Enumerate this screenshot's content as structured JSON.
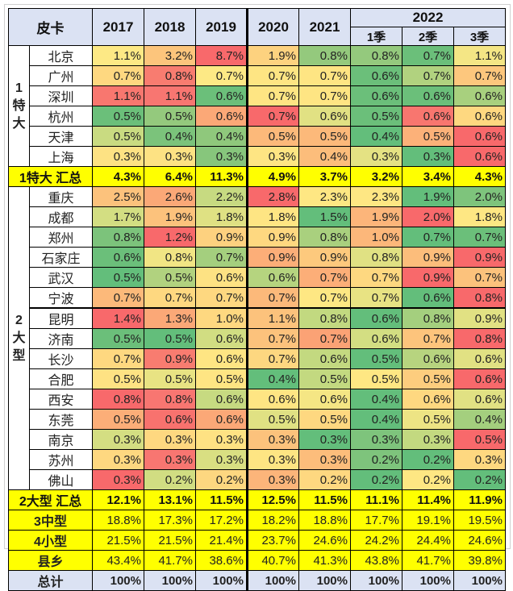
{
  "header": {
    "corner": "皮卡",
    "years": [
      "2017",
      "2018",
      "2019",
      "2020",
      "2021"
    ],
    "year_2022": "2022",
    "quarters": [
      "1季",
      "2季",
      "3季"
    ]
  },
  "groups": [
    {
      "label": "1\n特\n大",
      "rows": [
        {
          "city": "北京",
          "values": [
            "1.1%",
            "3.2%",
            "8.7%",
            "1.9%",
            "0.8%",
            "0.8%",
            "0.7%",
            "1.1%"
          ],
          "colors": [
            "#fde985",
            "#fcc57c",
            "#f8696b",
            "#fdd27f",
            "#94c97d",
            "#94c97d",
            "#6bbf7a",
            "#f4e685"
          ]
        },
        {
          "city": "广州",
          "values": [
            "0.7%",
            "0.8%",
            "0.7%",
            "0.7%",
            "0.7%",
            "0.6%",
            "0.7%",
            "0.7%"
          ],
          "colors": [
            "#fed880",
            "#f87c70",
            "#fde985",
            "#fee583",
            "#fee583",
            "#6bbf7a",
            "#b1d27f",
            "#fdc77d"
          ]
        },
        {
          "city": "深圳",
          "values": [
            "1.1%",
            "1.1%",
            "0.6%",
            "0.7%",
            "0.7%",
            "0.6%",
            "0.6%",
            "0.6%"
          ],
          "colors": [
            "#f8776f",
            "#f87671",
            "#6bbf7a",
            "#fee583",
            "#fee583",
            "#6bbf7a",
            "#6bbf7a",
            "#a8d07e"
          ]
        },
        {
          "city": "杭州",
          "values": [
            "0.5%",
            "0.5%",
            "0.6%",
            "0.7%",
            "0.6%",
            "0.5%",
            "0.6%",
            "0.6%"
          ],
          "colors": [
            "#6bbf7a",
            "#94c97d",
            "#fba877",
            "#f8696b",
            "#e1e183",
            "#6bbf7a",
            "#f8766f",
            "#fed880"
          ]
        },
        {
          "city": "天津",
          "values": [
            "0.5%",
            "0.4%",
            "0.4%",
            "0.5%",
            "0.5%",
            "0.4%",
            "0.5%",
            "0.6%"
          ],
          "colors": [
            "#c9db81",
            "#7bc37b",
            "#8fc87c",
            "#fcb97a",
            "#fcb97a",
            "#63be7b",
            "#fcb179",
            "#f8696b"
          ]
        },
        {
          "city": "上海",
          "values": [
            "0.3%",
            "0.3%",
            "0.3%",
            "0.3%",
            "0.4%",
            "0.3%",
            "0.3%",
            "0.6%"
          ],
          "colors": [
            "#fde283",
            "#fde283",
            "#87c67c",
            "#fee583",
            "#fcbd7b",
            "#e4e283",
            "#63be7b",
            "#f8696b"
          ]
        }
      ]
    },
    {
      "label": "2\n大\n型",
      "rows": [
        {
          "city": "重庆",
          "values": [
            "2.5%",
            "2.6%",
            "2.2%",
            "2.8%",
            "2.3%",
            "2.3%",
            "1.9%",
            "2.0%"
          ],
          "colors": [
            "#fcc27c",
            "#fba877",
            "#c7da81",
            "#f8696b",
            "#fee783",
            "#fee783",
            "#63be7b",
            "#7ec47c"
          ]
        },
        {
          "city": "成都",
          "values": [
            "1.7%",
            "1.9%",
            "1.8%",
            "1.8%",
            "1.5%",
            "1.9%",
            "2.0%",
            "1.8%"
          ],
          "colors": [
            "#d3de82",
            "#fcc27c",
            "#dfe183",
            "#fee583",
            "#63be7b",
            "#fcb57a",
            "#f8696b",
            "#fee783"
          ]
        },
        {
          "city": "郑州",
          "values": [
            "0.8%",
            "1.2%",
            "0.9%",
            "0.9%",
            "0.8%",
            "1.0%",
            "0.7%",
            "0.7%"
          ],
          "colors": [
            "#7cc37b",
            "#f8696b",
            "#fdd17f",
            "#fed880",
            "#a9d07e",
            "#fcb77a",
            "#63be7b",
            "#6bbf7a"
          ]
        },
        {
          "city": "石家庄",
          "values": [
            "0.6%",
            "0.8%",
            "0.7%",
            "0.9%",
            "0.9%",
            "0.8%",
            "0.9%",
            "0.9%"
          ],
          "colors": [
            "#6bbf7a",
            "#f1e584",
            "#a4cf7e",
            "#fcae78",
            "#fdc97d",
            "#e0e183",
            "#fcbd7b",
            "#f8696b"
          ]
        },
        {
          "city": "武汉",
          "values": [
            "0.5%",
            "0.5%",
            "0.6%",
            "0.6%",
            "0.7%",
            "0.7%",
            "0.9%",
            "0.7%"
          ],
          "colors": [
            "#63be7b",
            "#b1d27f",
            "#fde283",
            "#b5d47f",
            "#fcae78",
            "#fed880",
            "#f8696b",
            "#fcc27c"
          ]
        },
        {
          "city": "宁波",
          "values": [
            "0.7%",
            "0.7%",
            "0.7%",
            "0.7%",
            "0.7%",
            "0.7%",
            "0.6%",
            "0.8%"
          ],
          "colors": [
            "#fcb97a",
            "#fed880",
            "#fed880",
            "#fcb97a",
            "#fee783",
            "#e8e383",
            "#63be7b",
            "#f8696b"
          ]
        },
        {
          "city": "昆明",
          "values": [
            "1.4%",
            "1.3%",
            "1.0%",
            "1.1%",
            "0.8%",
            "0.6%",
            "0.8%",
            "0.9%"
          ],
          "colors": [
            "#f8696b",
            "#fba877",
            "#fed880",
            "#fcc27c",
            "#c2d980",
            "#63be7b",
            "#a4cf7e",
            "#e1e183"
          ]
        },
        {
          "city": "济南",
          "values": [
            "0.5%",
            "0.5%",
            "0.6%",
            "0.7%",
            "0.7%",
            "0.6%",
            "0.7%",
            "0.8%"
          ],
          "colors": [
            "#6bbf7a",
            "#63be7b",
            "#d1dd82",
            "#fcc27c",
            "#fba275",
            "#d3de82",
            "#fdc47c",
            "#f8696b"
          ]
        },
        {
          "city": "长沙",
          "values": [
            "0.7%",
            "0.9%",
            "0.6%",
            "0.7%",
            "0.6%",
            "0.5%",
            "0.6%",
            "0.6%"
          ],
          "colors": [
            "#fed880",
            "#f87c70",
            "#fee583",
            "#fdd780",
            "#c3d980",
            "#63be7b",
            "#b7d47f",
            "#e1e183"
          ]
        },
        {
          "city": "合肥",
          "values": [
            "0.5%",
            "0.5%",
            "0.5%",
            "0.4%",
            "0.5%",
            "0.5%",
            "0.5%",
            "0.6%"
          ],
          "colors": [
            "#fee283",
            "#e8e383",
            "#fee583",
            "#63be7b",
            "#c3d980",
            "#fee783",
            "#fdcd7e",
            "#f8696b"
          ]
        },
        {
          "city": "西安",
          "values": [
            "0.8%",
            "0.8%",
            "0.6%",
            "0.6%",
            "0.6%",
            "0.4%",
            "0.6%",
            "0.6%"
          ],
          "colors": [
            "#f8696b",
            "#f87671",
            "#c7da81",
            "#fee583",
            "#f5e684",
            "#63be7b",
            "#fed880",
            "#e1e183"
          ]
        },
        {
          "city": "东莞",
          "values": [
            "0.5%",
            "0.6%",
            "0.6%",
            "0.5%",
            "0.5%",
            "0.4%",
            "0.5%",
            "0.4%"
          ],
          "colors": [
            "#fcae78",
            "#f8726e",
            "#fba877",
            "#e0e183",
            "#fed880",
            "#63be7b",
            "#ede484",
            "#a4cf7e"
          ]
        },
        {
          "city": "南京",
          "values": [
            "0.3%",
            "0.3%",
            "0.3%",
            "0.3%",
            "0.3%",
            "0.3%",
            "0.3%",
            "0.5%"
          ],
          "colors": [
            "#d4de82",
            "#fed880",
            "#fee283",
            "#fcc27c",
            "#63be7b",
            "#7ec47c",
            "#c3d980",
            "#f8696b"
          ]
        },
        {
          "city": "苏州",
          "values": [
            "0.3%",
            "0.3%",
            "0.3%",
            "0.3%",
            "0.3%",
            "0.2%",
            "0.2%",
            "0.3%"
          ],
          "colors": [
            "#fed880",
            "#f87671",
            "#d9df82",
            "#fee583",
            "#fcbd7b",
            "#7ec47c",
            "#63be7b",
            "#fed880"
          ]
        },
        {
          "city": "佛山",
          "values": [
            "0.3%",
            "0.2%",
            "0.2%",
            "0.3%",
            "0.2%",
            "0.2%",
            "0.2%",
            "0.2%"
          ],
          "colors": [
            "#f8696b",
            "#d1dd82",
            "#fdd780",
            "#fcb57a",
            "#fed880",
            "#63be7b",
            "#fee783",
            "#63be7b"
          ]
        }
      ]
    }
  ],
  "totals": {
    "group1": {
      "label": "1特大 汇总",
      "values": [
        "4.3%",
        "6.4%",
        "11.3%",
        "4.9%",
        "3.7%",
        "3.2%",
        "3.4%",
        "4.3%"
      ]
    },
    "group2": {
      "label": "2大型 汇总",
      "values": [
        "12.1%",
        "13.1%",
        "11.5%",
        "12.5%",
        "11.5%",
        "11.1%",
        "11.4%",
        "11.9%"
      ]
    }
  },
  "summary": [
    {
      "label": "3中型",
      "values": [
        "18.8%",
        "17.3%",
        "17.2%",
        "18.2%",
        "18.8%",
        "17.7%",
        "19.1%",
        "19.5%"
      ]
    },
    {
      "label": "4小型",
      "values": [
        "21.5%",
        "21.5%",
        "21.4%",
        "23.7%",
        "24.6%",
        "24.2%",
        "24.4%",
        "24.6%"
      ]
    },
    {
      "label": "县乡",
      "values": [
        "43.4%",
        "41.7%",
        "38.6%",
        "40.7%",
        "41.3%",
        "43.8%",
        "41.7%",
        "39.8%"
      ]
    }
  ],
  "grand_total": {
    "label": "总计",
    "values": [
      "100%",
      "100%",
      "100%",
      "100%",
      "100%",
      "100%",
      "100%",
      "100%"
    ]
  }
}
